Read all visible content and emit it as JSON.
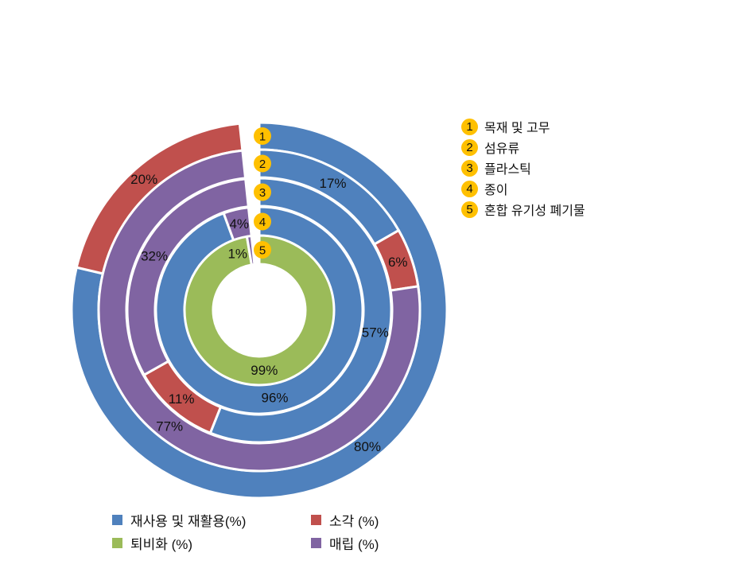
{
  "chart_data": {
    "type": "multi-ring donut",
    "series_names": [
      "재사용 및 재활용(%)",
      "소각 (%)",
      "퇴비화 (%)",
      "매립 (%)"
    ],
    "colors": {
      "재사용 및 재활용(%)": "#4F81BD",
      "소각 (%)": "#C0504D",
      "퇴비화 (%)": "#9BBB59",
      "매립 (%)": "#8064A2"
    },
    "rings": [
      {
        "num": "1",
        "name": "목재 및 고무",
        "slices": [
          {
            "series": "재사용 및 재활용(%)",
            "value": 80,
            "label": "80%"
          },
          {
            "series": "소각 (%)",
            "value": 20,
            "label": "20%"
          }
        ]
      },
      {
        "num": "2",
        "name": "섬유류",
        "slices": [
          {
            "series": "재사용 및 재활용(%)",
            "value": 17,
            "label": "17%"
          },
          {
            "series": "소각 (%)",
            "value": 6,
            "label": "6%"
          },
          {
            "series": "매립 (%)",
            "value": 77,
            "label": "77%"
          }
        ]
      },
      {
        "num": "3",
        "name": "플라스틱",
        "slices": [
          {
            "series": "재사용 및 재활용(%)",
            "value": 57,
            "label": "57%"
          },
          {
            "series": "소각 (%)",
            "value": 11,
            "label": "11%"
          },
          {
            "series": "매립 (%)",
            "value": 32,
            "label": "32%"
          }
        ]
      },
      {
        "num": "4",
        "name": "종이",
        "slices": [
          {
            "series": "재사용 및 재활용(%)",
            "value": 96,
            "label": "96%"
          },
          {
            "series": "매립 (%)",
            "value": 4,
            "label": "4%"
          }
        ]
      },
      {
        "num": "5",
        "name": "혼합 유기성 폐기물",
        "slices": [
          {
            "series": "퇴비화 (%)",
            "value": 99,
            "label": "99%"
          },
          {
            "series": "매립 (%)",
            "value": 1,
            "label": "1%"
          }
        ]
      }
    ],
    "legend": {
      "placement": "bottom",
      "items": [
        "재사용 및 재활용(%)",
        "소각 (%)",
        "퇴비화 (%)",
        "매립 (%)"
      ]
    }
  }
}
